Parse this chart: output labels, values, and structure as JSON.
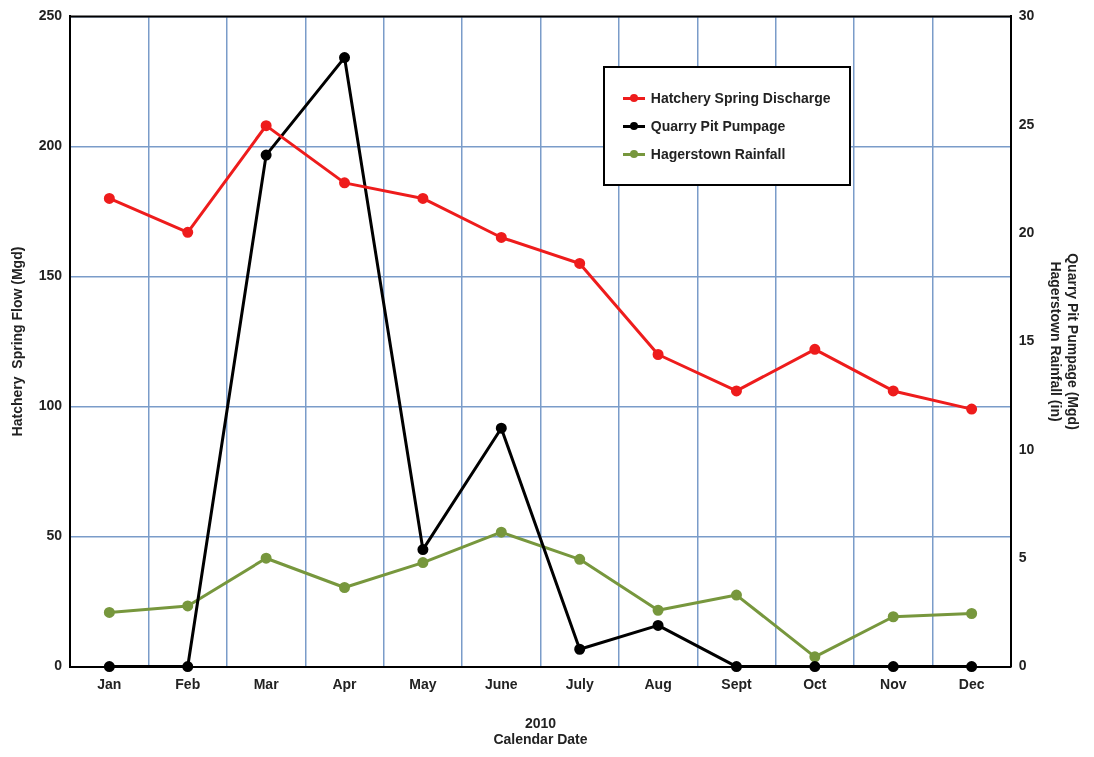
{
  "chart_data": {
    "type": "line",
    "categories": [
      "Jan",
      "Feb",
      "Mar",
      "Apr",
      "May",
      "June",
      "July",
      "Aug",
      "Sept",
      "Oct",
      "Nov",
      "Dec"
    ],
    "xlabel": "2010\nCalendar Date",
    "ylabel": "Hatchery  Spring Flow (Mgd)",
    "y2label": "Quarry Pit Pumpage (Mgd)\nHagerstown Rainfall (in)",
    "series": [
      {
        "name": "Hatchery Spring Discharge",
        "color": "#ee1c1c",
        "values": [
          180,
          167,
          208,
          186,
          180,
          165,
          155,
          120,
          106,
          122,
          106,
          99
        ]
      },
      {
        "name": "Quarry Pit Pumpage",
        "color": "#000000",
        "axis": "y2",
        "values": [
          0,
          0,
          23.6,
          28.1,
          5.4,
          11.0,
          0.8,
          1.9,
          0,
          0,
          0,
          0
        ]
      },
      {
        "name": "Hagerstown Rainfall",
        "color": "#77973d",
        "axis": "y2",
        "values": [
          2.5,
          2.8,
          5.0,
          3.65,
          4.8,
          6.2,
          4.95,
          2.6,
          3.3,
          0.45,
          2.3,
          2.45
        ]
      }
    ],
    "ylim": [
      0,
      250
    ],
    "yticks": [
      0,
      50,
      100,
      150,
      200,
      250
    ],
    "y2lim": [
      0,
      30
    ],
    "y2ticks": [
      0,
      5,
      10,
      15,
      20,
      25,
      30
    ],
    "grid": true,
    "legend": "top right",
    "marker": "circle",
    "line_style": "solid"
  }
}
